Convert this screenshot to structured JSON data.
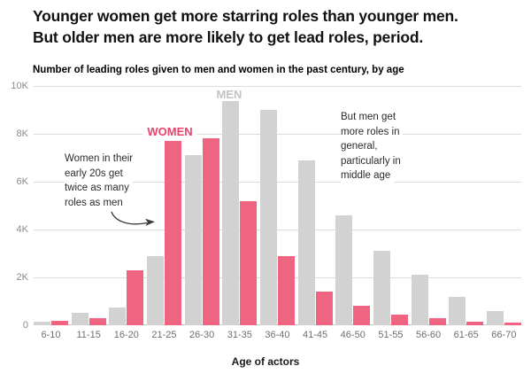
{
  "title": {
    "line1": "Younger women get more starring roles than younger men.",
    "line2": "But older men are more likely to get lead roles, period."
  },
  "subtitle": "Number of leading roles given to men and women in the past century, by age",
  "chart_data": {
    "type": "bar",
    "title": "Number of leading roles given to men and women in the past century, by age",
    "categories": [
      "6-10",
      "11-15",
      "16-20",
      "21-25",
      "26-30",
      "31-35",
      "36-40",
      "41-45",
      "46-50",
      "51-55",
      "56-60",
      "61-65",
      "66-70"
    ],
    "series": [
      {
        "name": "MEN",
        "color": "#d2d2d2",
        "values": [
          150,
          500,
          750,
          2900,
          7100,
          9400,
          9000,
          6900,
          4600,
          3100,
          2100,
          1200,
          600
        ]
      },
      {
        "name": "WOMEN",
        "color": "#ef6480",
        "values": [
          200,
          300,
          2300,
          7700,
          7800,
          5200,
          2900,
          1400,
          800,
          450,
          300,
          150,
          100
        ]
      }
    ],
    "xlabel": "Age of actors",
    "ylabel": "",
    "ylim": [
      0,
      10000
    ],
    "yticks": [
      "10K",
      "8K",
      "6K",
      "4K",
      "2K",
      "0"
    ],
    "grid": true,
    "legend_position": "inline-above-bars"
  },
  "annotations": {
    "left": {
      "lines": [
        "Women in their",
        "early 20s get",
        "twice as many",
        "roles as men"
      ]
    },
    "right": {
      "lines": [
        "But men get",
        "more roles in",
        "general,",
        "particularly in",
        "middle age"
      ]
    }
  },
  "colors": {
    "women_bar": "#ef6480",
    "men_bar": "#d2d2d2",
    "women_label": "#e8426e",
    "men_label": "#c3c3c3",
    "gridline": "#dcdcdc",
    "baseline": "#c9c9c9",
    "y_axis_text": "#8a8a8a",
    "x_axis_text": "#6f6f6f",
    "annotation_text": "#2b2b2b",
    "title_text": "#111111"
  }
}
